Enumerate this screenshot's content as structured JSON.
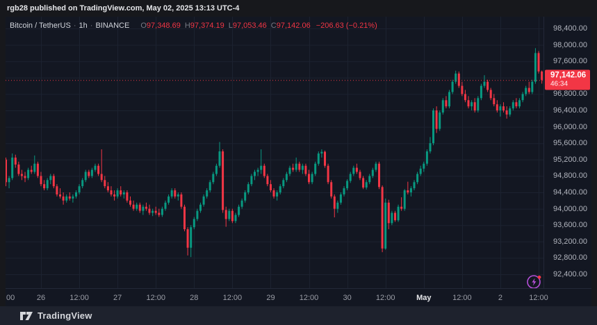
{
  "header": {
    "text": "rgb28 published on TradingView.com, May 02, 2025 13:13 UTC-4"
  },
  "legend": {
    "symbol": "Bitcoin / TetherUS",
    "sep": "·",
    "interval": "1h",
    "exchange": "BINANCE",
    "o_label": "O",
    "o_value": "97,348.69",
    "h_label": "H",
    "h_value": "97,374.19",
    "l_label": "L",
    "l_value": "97,053.46",
    "c_label": "C",
    "c_value": "97,142.06",
    "change": "−206.63 (−0.21%)"
  },
  "footer": {
    "brand": "TradingView",
    "mark": "17"
  },
  "colors": {
    "up": "#089981",
    "down": "#f23645",
    "accent_red": "#f23645",
    "grid": "#1c2230",
    "panel_bg": "#131722",
    "page_bg": "#17181c",
    "footer_bg": "#1e222d",
    "axis_text": "#b2b5be",
    "flash_purple": "#b44fd8"
  },
  "chart_data": {
    "type": "candlestick",
    "title": "Bitcoin / TetherUS · 1h · BINANCE",
    "symbol": "Bitcoin / TetherUS",
    "exchange": "BINANCE",
    "interval": "1h",
    "start": "2025-04-25 12:00",
    "timezone": "UTC-4",
    "ylim": [
      92400,
      98400
    ],
    "grid": true,
    "last_price": 97142.06,
    "last_price_label": "97,142.06",
    "countdown": "46:34",
    "price_ticks": [
      {
        "label": "98,400.00",
        "value": 98400
      },
      {
        "label": "98,000.00",
        "value": 98000
      },
      {
        "label": "97,600.00",
        "value": 97600
      },
      {
        "label": "97,200.00",
        "value": 97200
      },
      {
        "label": "96,800.00",
        "value": 96800
      },
      {
        "label": "96,400.00",
        "value": 96400
      },
      {
        "label": "96,000.00",
        "value": 96000
      },
      {
        "label": "95,600.00",
        "value": 95600
      },
      {
        "label": "95,200.00",
        "value": 95200
      },
      {
        "label": "94,800.00",
        "value": 94800
      },
      {
        "label": "94,400.00",
        "value": 94400
      },
      {
        "label": "94,000.00",
        "value": 94000
      },
      {
        "label": "93,600.00",
        "value": 93600
      },
      {
        "label": "93,200.00",
        "value": 93200
      },
      {
        "label": "92,800.00",
        "value": 92800
      },
      {
        "label": "92,400.00",
        "value": 92400
      }
    ],
    "time_ticks": [
      {
        "i": 0,
        "label": "00",
        "edge": true
      },
      {
        "i": 12,
        "label": "26"
      },
      {
        "i": 24,
        "label": "12:00"
      },
      {
        "i": 36,
        "label": "27"
      },
      {
        "i": 48,
        "label": "12:00"
      },
      {
        "i": 60,
        "label": "28"
      },
      {
        "i": 72,
        "label": "12:00"
      },
      {
        "i": 84,
        "label": "29"
      },
      {
        "i": 96,
        "label": "12:00"
      },
      {
        "i": 108,
        "label": "30"
      },
      {
        "i": 120,
        "label": "12:00"
      },
      {
        "i": 132,
        "label": "May",
        "bold": true
      },
      {
        "i": 144,
        "label": "12:00"
      },
      {
        "i": 156,
        "label": "2"
      },
      {
        "i": 168,
        "label": "12:00"
      }
    ],
    "ohlc": [
      [
        95350,
        95570,
        95150,
        95200
      ],
      [
        95200,
        95250,
        94550,
        94650
      ],
      [
        94650,
        94800,
        94500,
        94750
      ],
      [
        94750,
        95350,
        94700,
        95250
      ],
      [
        95250,
        95320,
        95000,
        95080
      ],
      [
        95080,
        95150,
        94800,
        94850
      ],
      [
        94850,
        94950,
        94700,
        94800
      ],
      [
        94800,
        94900,
        94650,
        94750
      ],
      [
        94750,
        95000,
        94700,
        94950
      ],
      [
        94950,
        95050,
        94850,
        94900
      ],
      [
        94900,
        95300,
        94850,
        95100
      ],
      [
        95100,
        95150,
        94750,
        94800
      ],
      [
        94800,
        94900,
        94550,
        94600
      ],
      [
        94600,
        94700,
        94450,
        94500
      ],
      [
        94500,
        94750,
        94450,
        94700
      ],
      [
        94700,
        94850,
        94600,
        94800
      ],
      [
        94800,
        94850,
        94500,
        94550
      ],
      [
        94550,
        94600,
        94300,
        94350
      ],
      [
        94350,
        94500,
        94250,
        94300
      ],
      [
        94300,
        94400,
        94100,
        94200
      ],
      [
        94200,
        94350,
        94150,
        94300
      ],
      [
        94300,
        94400,
        94200,
        94250
      ],
      [
        94250,
        94350,
        94150,
        94300
      ],
      [
        94300,
        94450,
        94250,
        94400
      ],
      [
        94400,
        94600,
        94350,
        94550
      ],
      [
        94550,
        94750,
        94500,
        94700
      ],
      [
        94700,
        94950,
        94650,
        94900
      ],
      [
        94900,
        94950,
        94750,
        94800
      ],
      [
        94800,
        95000,
        94750,
        94950
      ],
      [
        94950,
        95100,
        94900,
        95050
      ],
      [
        95050,
        95100,
        94800,
        94850
      ],
      [
        94850,
        95450,
        94650,
        94700
      ],
      [
        94700,
        94800,
        94500,
        94550
      ],
      [
        94550,
        94650,
        94400,
        94450
      ],
      [
        94450,
        94550,
        94300,
        94350
      ],
      [
        94350,
        94450,
        94200,
        94300
      ],
      [
        94300,
        94500,
        94250,
        94450
      ],
      [
        94450,
        94550,
        94300,
        94350
      ],
      [
        94350,
        94450,
        94250,
        94400
      ],
      [
        94400,
        94450,
        94150,
        94200
      ],
      [
        94200,
        94300,
        94050,
        94100
      ],
      [
        94100,
        94200,
        93950,
        94000
      ],
      [
        94000,
        94150,
        93950,
        94100
      ],
      [
        94100,
        94150,
        93900,
        93950
      ],
      [
        93950,
        94100,
        93850,
        94050
      ],
      [
        94050,
        94150,
        93950,
        94000
      ],
      [
        94000,
        94100,
        93850,
        93900
      ],
      [
        93900,
        94000,
        93820,
        93950
      ],
      [
        93950,
        94050,
        93850,
        93900
      ],
      [
        93900,
        94000,
        93800,
        93850
      ],
      [
        93850,
        94050,
        93800,
        94000
      ],
      [
        94000,
        94200,
        93950,
        94150
      ],
      [
        94150,
        94350,
        94100,
        94300
      ],
      [
        94300,
        94500,
        94250,
        94450
      ],
      [
        94450,
        94500,
        94250,
        94300
      ],
      [
        94300,
        94400,
        94200,
        94350
      ],
      [
        94350,
        94400,
        94000,
        94050
      ],
      [
        94050,
        94100,
        93450,
        93500
      ],
      [
        93500,
        93550,
        92860,
        93050
      ],
      [
        93050,
        93600,
        92820,
        93550
      ],
      [
        93550,
        93800,
        93500,
        93750
      ],
      [
        93750,
        94000,
        93700,
        93950
      ],
      [
        93950,
        94150,
        93900,
        94100
      ],
      [
        94100,
        94350,
        94050,
        94300
      ],
      [
        94300,
        94500,
        94250,
        94450
      ],
      [
        94450,
        94700,
        94400,
        94650
      ],
      [
        94650,
        94900,
        94600,
        94850
      ],
      [
        94850,
        95100,
        94800,
        95050
      ],
      [
        95050,
        95630,
        95000,
        95400
      ],
      [
        95400,
        95450,
        93900,
        93970
      ],
      [
        93970,
        94050,
        93560,
        93750
      ],
      [
        93750,
        94000,
        93700,
        93950
      ],
      [
        93950,
        94000,
        93650,
        93700
      ],
      [
        93700,
        93900,
        93650,
        93850
      ],
      [
        93850,
        94100,
        93800,
        94050
      ],
      [
        94050,
        94250,
        94000,
        94200
      ],
      [
        94200,
        94450,
        94150,
        94400
      ],
      [
        94400,
        94650,
        94350,
        94600
      ],
      [
        94600,
        94850,
        94550,
        94800
      ],
      [
        94800,
        94950,
        94700,
        94900
      ],
      [
        94900,
        95000,
        94800,
        94950
      ],
      [
        94950,
        95450,
        94850,
        95050
      ],
      [
        95050,
        95100,
        94750,
        94800
      ],
      [
        94800,
        94850,
        94550,
        94600
      ],
      [
        94600,
        94700,
        94400,
        94450
      ],
      [
        94450,
        94500,
        94250,
        94300
      ],
      [
        94300,
        94450,
        94200,
        94400
      ],
      [
        94400,
        94600,
        94350,
        94550
      ],
      [
        94550,
        94750,
        94500,
        94700
      ],
      [
        94700,
        94900,
        94650,
        94850
      ],
      [
        94850,
        95050,
        94800,
        95000
      ],
      [
        95000,
        95100,
        94900,
        94950
      ],
      [
        94950,
        95250,
        94900,
        95100
      ],
      [
        95100,
        95150,
        94900,
        94950
      ],
      [
        94950,
        95100,
        94850,
        95050
      ],
      [
        95050,
        95100,
        94800,
        94850
      ],
      [
        94850,
        94950,
        94600,
        94650
      ],
      [
        94650,
        94900,
        94600,
        94850
      ],
      [
        94850,
        95150,
        94800,
        95100
      ],
      [
        95100,
        95400,
        95050,
        95350
      ],
      [
        95350,
        95450,
        95250,
        95390
      ],
      [
        95390,
        95420,
        95000,
        95050
      ],
      [
        95050,
        95100,
        94600,
        94650
      ],
      [
        94650,
        94700,
        94250,
        94300
      ],
      [
        94300,
        94350,
        93790,
        94000
      ],
      [
        94000,
        94200,
        93900,
        94150
      ],
      [
        94150,
        94400,
        94100,
        94350
      ],
      [
        94350,
        94550,
        94300,
        94500
      ],
      [
        94500,
        94720,
        94450,
        94680
      ],
      [
        94680,
        94900,
        94630,
        94850
      ],
      [
        94850,
        95050,
        94800,
        95000
      ],
      [
        95000,
        95100,
        94850,
        94900
      ],
      [
        94900,
        94950,
        94700,
        94750
      ],
      [
        94750,
        94800,
        94480,
        94520
      ],
      [
        94520,
        94700,
        94470,
        94650
      ],
      [
        94650,
        94850,
        94600,
        94800
      ],
      [
        94800,
        95000,
        94750,
        94950
      ],
      [
        94950,
        95150,
        94900,
        95100
      ],
      [
        95100,
        95150,
        94480,
        94530
      ],
      [
        94530,
        94570,
        92940,
        93030
      ],
      [
        93030,
        94250,
        93000,
        94150
      ],
      [
        94150,
        94220,
        93500,
        93650
      ],
      [
        93650,
        93950,
        93600,
        93900
      ],
      [
        93900,
        93950,
        93680,
        93720
      ],
      [
        93720,
        94100,
        93680,
        94050
      ],
      [
        94050,
        94280,
        93950,
        94000
      ],
      [
        94000,
        94480,
        93950,
        94450
      ],
      [
        94450,
        94660,
        94350,
        94400
      ],
      [
        94400,
        94550,
        94300,
        94500
      ],
      [
        94500,
        94700,
        94450,
        94650
      ],
      [
        94650,
        94900,
        94600,
        94850
      ],
      [
        94850,
        95050,
        94800,
        94980
      ],
      [
        94980,
        95150,
        94900,
        95100
      ],
      [
        95100,
        95450,
        95050,
        95400
      ],
      [
        95400,
        95750,
        95350,
        95600
      ],
      [
        95600,
        96450,
        95550,
        96400
      ],
      [
        96400,
        96500,
        95850,
        95950
      ],
      [
        95950,
        96400,
        95900,
        96350
      ],
      [
        96350,
        96700,
        96300,
        96650
      ],
      [
        96650,
        96750,
        96450,
        96500
      ],
      [
        96500,
        96900,
        96450,
        96850
      ],
      [
        96850,
        97150,
        96800,
        97100
      ],
      [
        97100,
        97370,
        97050,
        97300
      ],
      [
        97300,
        97350,
        96950,
        97000
      ],
      [
        97000,
        97100,
        96750,
        96800
      ],
      [
        96800,
        96900,
        96600,
        96650
      ],
      [
        96650,
        96750,
        96450,
        96500
      ],
      [
        96500,
        96650,
        96400,
        96600
      ],
      [
        96600,
        96700,
        96350,
        96400
      ],
      [
        96400,
        96750,
        96350,
        96700
      ],
      [
        96700,
        97050,
        96650,
        97000
      ],
      [
        97000,
        97260,
        96950,
        97100
      ],
      [
        97100,
        97150,
        96850,
        96900
      ],
      [
        96900,
        96950,
        96650,
        96700
      ],
      [
        96700,
        96800,
        96500,
        96550
      ],
      [
        96550,
        96650,
        96350,
        96400
      ],
      [
        96400,
        96550,
        96250,
        96500
      ],
      [
        96500,
        96600,
        96350,
        96400
      ],
      [
        96400,
        96500,
        96200,
        96300
      ],
      [
        96300,
        96500,
        96250,
        96450
      ],
      [
        96450,
        96650,
        96400,
        96600
      ],
      [
        96600,
        96700,
        96450,
        96500
      ],
      [
        96500,
        96700,
        96450,
        96650
      ],
      [
        96650,
        96850,
        96600,
        96800
      ],
      [
        96800,
        97000,
        96750,
        96950
      ],
      [
        96950,
        97100,
        96800,
        96850
      ],
      [
        96850,
        97150,
        96800,
        97100
      ],
      [
        97100,
        97920,
        97050,
        97800
      ],
      [
        97800,
        97850,
        97300,
        97350
      ],
      [
        97348.69,
        97374.19,
        97053.46,
        97142.06
      ]
    ]
  }
}
